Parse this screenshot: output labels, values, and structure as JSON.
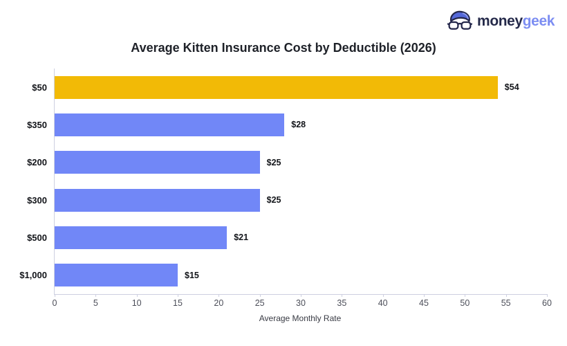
{
  "logo": {
    "text_primary": "money",
    "text_secondary": "geek",
    "colors": {
      "primary_text": "#252A4A",
      "secondary_text": "#7C8DF2",
      "icon_fill": "#5468D8"
    }
  },
  "chart_data": {
    "type": "bar",
    "orientation": "horizontal",
    "title": "Average Kitten Insurance Cost by Deductible (2026)",
    "categories": [
      "$50",
      "$350",
      "$200",
      "$300",
      "$500",
      "$1,000"
    ],
    "values": [
      54,
      28,
      25,
      25,
      21,
      15
    ],
    "value_labels": [
      "$54",
      "$28",
      "$25",
      "$25",
      "$21",
      "$15"
    ],
    "xlabel": "Average Monthly Rate",
    "ylabel": "",
    "xlim": [
      0,
      60
    ],
    "x_ticks": [
      0,
      5,
      10,
      15,
      20,
      25,
      30,
      35,
      40,
      45,
      50,
      55,
      60
    ],
    "grid": false,
    "legend": false,
    "highlight_color": "#F2BA06",
    "bar_color": "#7187F7",
    "axis_line_color": "#CDCFE0"
  }
}
